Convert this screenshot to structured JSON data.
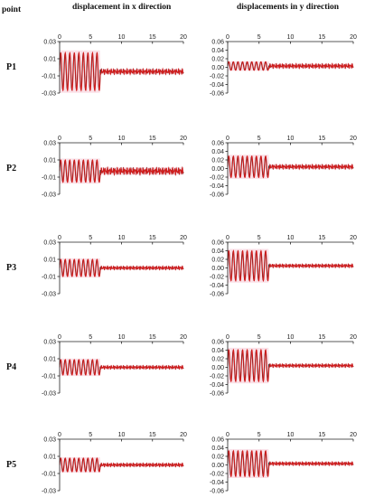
{
  "headers": {
    "point": "point",
    "x_direction": "displacement in x direction",
    "y_direction": "displacements in y direction"
  },
  "chart_data": [
    {
      "type": "line",
      "point": "P1",
      "direction": "x",
      "xlim": [
        0,
        20
      ],
      "xticks": [
        0,
        5,
        10,
        15,
        20
      ],
      "ylim": [
        -0.03,
        0.03
      ],
      "yticks": [
        "0.03",
        "0.01",
        "-0.01",
        "-0.03"
      ],
      "amp_before": 0.022,
      "amp_after": 0.003,
      "offset": -0.005,
      "break_time": 6.6,
      "periods": 9
    },
    {
      "type": "line",
      "point": "P1",
      "direction": "y",
      "xlim": [
        0,
        20
      ],
      "xticks": [
        0,
        5,
        10,
        15,
        20
      ],
      "ylim": [
        -0.06,
        0.06
      ],
      "yticks": [
        "0.06",
        "0.04",
        "0.02",
        "0.00",
        "-0.02",
        "-0.04",
        "-0.06"
      ],
      "amp_before": 0.01,
      "amp_after": 0.005,
      "offset": 0.003,
      "break_time": 6.6,
      "periods": 9
    },
    {
      "type": "line",
      "point": "P2",
      "direction": "x",
      "xlim": [
        0,
        20
      ],
      "xticks": [
        0,
        5,
        10,
        15,
        20
      ],
      "ylim": [
        -0.03,
        0.03
      ],
      "yticks": [
        "0.03",
        "0.01",
        "-0.01",
        "-0.03"
      ],
      "amp_before": 0.013,
      "amp_after": 0.004,
      "offset": -0.003,
      "break_time": 6.6,
      "periods": 9
    },
    {
      "type": "line",
      "point": "P2",
      "direction": "y",
      "xlim": [
        0,
        20
      ],
      "xticks": [
        0,
        5,
        10,
        15,
        20
      ],
      "ylim": [
        -0.06,
        0.06
      ],
      "yticks": [
        "0.06",
        "0.04",
        "0.02",
        "0.00",
        "-0.02",
        "-0.04",
        "-0.06"
      ],
      "amp_before": 0.025,
      "amp_after": 0.005,
      "offset": 0.004,
      "break_time": 6.6,
      "periods": 9
    },
    {
      "type": "line",
      "point": "P3",
      "direction": "x",
      "xlim": [
        0,
        20
      ],
      "xticks": [
        0,
        5,
        10,
        15,
        20
      ],
      "ylim": [
        -0.03,
        0.03
      ],
      "yticks": [
        "0.03",
        "0.01",
        "-0.01",
        "-0.03"
      ],
      "amp_before": 0.01,
      "amp_after": 0.002,
      "offset": 0.0,
      "break_time": 6.6,
      "periods": 9
    },
    {
      "type": "line",
      "point": "P3",
      "direction": "y",
      "xlim": [
        0,
        20
      ],
      "xticks": [
        0,
        5,
        10,
        15,
        20
      ],
      "ylim": [
        -0.06,
        0.06
      ],
      "yticks": [
        "0.06",
        "0.04",
        "0.02",
        "0.00",
        "-0.02",
        "-0.04",
        "-0.06"
      ],
      "amp_before": 0.035,
      "amp_after": 0.004,
      "offset": 0.005,
      "break_time": 6.6,
      "periods": 9
    },
    {
      "type": "line",
      "point": "P4",
      "direction": "x",
      "xlim": [
        0,
        20
      ],
      "xticks": [
        0,
        5,
        10,
        15,
        20
      ],
      "ylim": [
        -0.03,
        0.03
      ],
      "yticks": [
        "0.03",
        "0.01",
        "-0.01",
        "-0.03"
      ],
      "amp_before": 0.009,
      "amp_after": 0.002,
      "offset": 0.0,
      "break_time": 6.6,
      "periods": 9
    },
    {
      "type": "line",
      "point": "P4",
      "direction": "y",
      "xlim": [
        0,
        20
      ],
      "xticks": [
        0,
        5,
        10,
        15,
        20
      ],
      "ylim": [
        -0.06,
        0.06
      ],
      "yticks": [
        "0.06",
        "0.04",
        "0.02",
        "0.00",
        "-0.02",
        "-0.04",
        "-0.06"
      ],
      "amp_before": 0.037,
      "amp_after": 0.004,
      "offset": 0.004,
      "break_time": 6.6,
      "periods": 9
    },
    {
      "type": "line",
      "point": "P5",
      "direction": "x",
      "xlim": [
        0,
        20
      ],
      "xticks": [
        0,
        5,
        10,
        15,
        20
      ],
      "ylim": [
        -0.03,
        0.03
      ],
      "yticks": [
        "0.03",
        "0.01",
        "-0.01",
        "-0.03"
      ],
      "amp_before": 0.008,
      "amp_after": 0.002,
      "offset": 0.0,
      "break_time": 6.6,
      "periods": 9
    },
    {
      "type": "line",
      "point": "P5",
      "direction": "y",
      "xlim": [
        0,
        20
      ],
      "xticks": [
        0,
        5,
        10,
        15,
        20
      ],
      "ylim": [
        -0.06,
        0.06
      ],
      "yticks": [
        "0.06",
        "0.04",
        "0.02",
        "0.00",
        "-0.02",
        "-0.04",
        "-0.06"
      ],
      "amp_before": 0.03,
      "amp_after": 0.004,
      "offset": 0.003,
      "break_time": 6.6,
      "periods": 9
    }
  ],
  "colors": {
    "series_a": "#1a1a1a",
    "series_b": "#d41b1b",
    "band": "#f6c9d6"
  }
}
